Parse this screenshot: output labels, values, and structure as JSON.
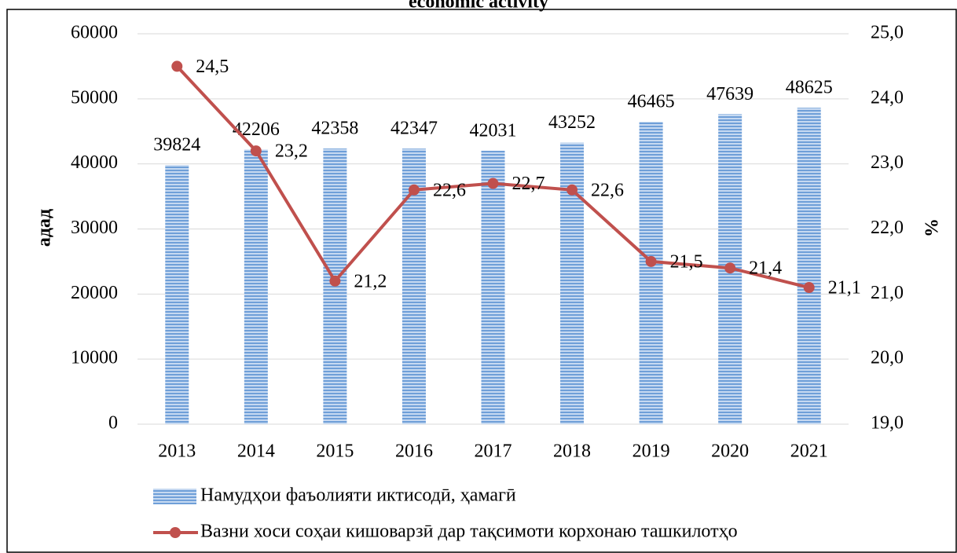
{
  "chart_data": {
    "type": "bar-line",
    "title": "economic activity",
    "ylabel": "адад",
    "y2label": "%",
    "categories": [
      "2013",
      "2014",
      "2015",
      "2016",
      "2017",
      "2018",
      "2019",
      "2020",
      "2021"
    ],
    "series": [
      {
        "name": "Намудҳои фаъолияти иктисодӣ, ҳамагӣ",
        "type": "bar",
        "color": "#6f9fd8",
        "values": [
          39824,
          42206,
          42358,
          42347,
          42031,
          43252,
          46465,
          47639,
          48625
        ]
      },
      {
        "name": "Вазни хоси соҳаи кишоварзӣ дар тақсимоти корхонаю ташкилотҳо",
        "type": "line",
        "axis": "y2",
        "color": "#c0504d",
        "values": [
          24.5,
          23.2,
          21.2,
          22.6,
          22.7,
          22.6,
          21.5,
          21.4,
          21.1
        ],
        "value_labels": [
          "24,5",
          "23,2",
          "21,2",
          "22,6",
          "22,7",
          "22,6",
          "21,5",
          "21,4",
          "21,1"
        ]
      }
    ],
    "ylim": [
      0,
      60000
    ],
    "yticks": [
      0,
      10000,
      20000,
      30000,
      40000,
      50000,
      60000
    ],
    "y2lim": [
      19,
      25
    ],
    "y2ticks": [
      {
        "value": 19,
        "label": "19,0"
      },
      {
        "value": 20,
        "label": "20,0"
      },
      {
        "value": 21,
        "label": "21,0"
      },
      {
        "value": 22,
        "label": "22,0"
      },
      {
        "value": 23,
        "label": "23,0"
      },
      {
        "value": 24,
        "label": "24,0"
      },
      {
        "value": 25,
        "label": "25,0"
      }
    ],
    "grid": true
  }
}
